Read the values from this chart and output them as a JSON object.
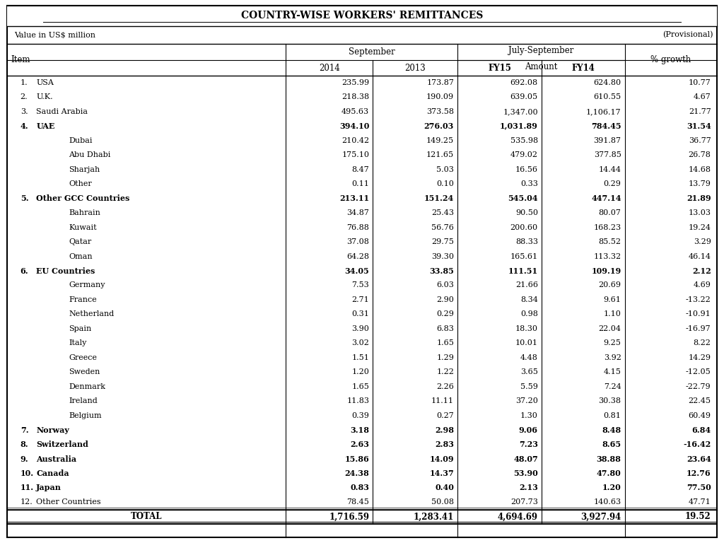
{
  "title": "COUNTRY-WISE WORKERS' REMITTANCES",
  "subtitle_left": "Value in US$ million",
  "subtitle_right": "(Provisional)",
  "col_headers": {
    "september": "September",
    "july_september": "July-September",
    "amount": "Amount",
    "pct_growth": "% growth",
    "sep_2014": "2014",
    "sep_2013": "2013",
    "fy15": "FY15",
    "fy14": "FY14"
  },
  "rows": [
    {
      "num": "1.",
      "name": "USA",
      "indent": 0,
      "bold": false,
      "sep14": "235.99",
      "sep13": "173.87",
      "fy15": "692.08",
      "fy14": "624.80",
      "pct": "10.77"
    },
    {
      "num": "2.",
      "name": "U.K.",
      "indent": 0,
      "bold": false,
      "sep14": "218.38",
      "sep13": "190.09",
      "fy15": "639.05",
      "fy14": "610.55",
      "pct": "4.67"
    },
    {
      "num": "3.",
      "name": "Saudi Arabia",
      "indent": 0,
      "bold": false,
      "sep14": "495.63",
      "sep13": "373.58",
      "fy15": "1,347.00",
      "fy14": "1,106.17",
      "pct": "21.77"
    },
    {
      "num": "4.",
      "name": "UAE",
      "indent": 0,
      "bold": true,
      "sep14": "394.10",
      "sep13": "276.03",
      "fy15": "1,031.89",
      "fy14": "784.45",
      "pct": "31.54"
    },
    {
      "num": "",
      "name": "Dubai",
      "indent": 1,
      "bold": false,
      "sep14": "210.42",
      "sep13": "149.25",
      "fy15": "535.98",
      "fy14": "391.87",
      "pct": "36.77"
    },
    {
      "num": "",
      "name": "Abu Dhabi",
      "indent": 1,
      "bold": false,
      "sep14": "175.10",
      "sep13": "121.65",
      "fy15": "479.02",
      "fy14": "377.85",
      "pct": "26.78"
    },
    {
      "num": "",
      "name": "Sharjah",
      "indent": 1,
      "bold": false,
      "sep14": "8.47",
      "sep13": "5.03",
      "fy15": "16.56",
      "fy14": "14.44",
      "pct": "14.68"
    },
    {
      "num": "",
      "name": "Other",
      "indent": 1,
      "bold": false,
      "sep14": "0.11",
      "sep13": "0.10",
      "fy15": "0.33",
      "fy14": "0.29",
      "pct": "13.79"
    },
    {
      "num": "5.",
      "name": "Other GCC Countries",
      "indent": 0,
      "bold": true,
      "sep14": "213.11",
      "sep13": "151.24",
      "fy15": "545.04",
      "fy14": "447.14",
      "pct": "21.89"
    },
    {
      "num": "",
      "name": "Bahrain",
      "indent": 1,
      "bold": false,
      "sep14": "34.87",
      "sep13": "25.43",
      "fy15": "90.50",
      "fy14": "80.07",
      "pct": "13.03"
    },
    {
      "num": "",
      "name": "Kuwait",
      "indent": 1,
      "bold": false,
      "sep14": "76.88",
      "sep13": "56.76",
      "fy15": "200.60",
      "fy14": "168.23",
      "pct": "19.24"
    },
    {
      "num": "",
      "name": "Qatar",
      "indent": 1,
      "bold": false,
      "sep14": "37.08",
      "sep13": "29.75",
      "fy15": "88.33",
      "fy14": "85.52",
      "pct": "3.29"
    },
    {
      "num": "",
      "name": "Oman",
      "indent": 1,
      "bold": false,
      "sep14": "64.28",
      "sep13": "39.30",
      "fy15": "165.61",
      "fy14": "113.32",
      "pct": "46.14"
    },
    {
      "num": "6.",
      "name": "EU Countries",
      "indent": 0,
      "bold": true,
      "sep14": "34.05",
      "sep13": "33.85",
      "fy15": "111.51",
      "fy14": "109.19",
      "pct": "2.12"
    },
    {
      "num": "",
      "name": "Germany",
      "indent": 1,
      "bold": false,
      "sep14": "7.53",
      "sep13": "6.03",
      "fy15": "21.66",
      "fy14": "20.69",
      "pct": "4.69"
    },
    {
      "num": "",
      "name": "France",
      "indent": 1,
      "bold": false,
      "sep14": "2.71",
      "sep13": "2.90",
      "fy15": "8.34",
      "fy14": "9.61",
      "pct": "-13.22"
    },
    {
      "num": "",
      "name": "Netherland",
      "indent": 1,
      "bold": false,
      "sep14": "0.31",
      "sep13": "0.29",
      "fy15": "0.98",
      "fy14": "1.10",
      "pct": "-10.91"
    },
    {
      "num": "",
      "name": "Spain",
      "indent": 1,
      "bold": false,
      "sep14": "3.90",
      "sep13": "6.83",
      "fy15": "18.30",
      "fy14": "22.04",
      "pct": "-16.97"
    },
    {
      "num": "",
      "name": "Italy",
      "indent": 1,
      "bold": false,
      "sep14": "3.02",
      "sep13": "1.65",
      "fy15": "10.01",
      "fy14": "9.25",
      "pct": "8.22"
    },
    {
      "num": "",
      "name": "Greece",
      "indent": 1,
      "bold": false,
      "sep14": "1.51",
      "sep13": "1.29",
      "fy15": "4.48",
      "fy14": "3.92",
      "pct": "14.29"
    },
    {
      "num": "",
      "name": "Sweden",
      "indent": 1,
      "bold": false,
      "sep14": "1.20",
      "sep13": "1.22",
      "fy15": "3.65",
      "fy14": "4.15",
      "pct": "-12.05"
    },
    {
      "num": "",
      "name": "Denmark",
      "indent": 1,
      "bold": false,
      "sep14": "1.65",
      "sep13": "2.26",
      "fy15": "5.59",
      "fy14": "7.24",
      "pct": "-22.79"
    },
    {
      "num": "",
      "name": "Ireland",
      "indent": 1,
      "bold": false,
      "sep14": "11.83",
      "sep13": "11.11",
      "fy15": "37.20",
      "fy14": "30.38",
      "pct": "22.45"
    },
    {
      "num": "",
      "name": "Belgium",
      "indent": 1,
      "bold": false,
      "sep14": "0.39",
      "sep13": "0.27",
      "fy15": "1.30",
      "fy14": "0.81",
      "pct": "60.49"
    },
    {
      "num": "7.",
      "name": "Norway",
      "indent": 0,
      "bold": true,
      "sep14": "3.18",
      "sep13": "2.98",
      "fy15": "9.06",
      "fy14": "8.48",
      "pct": "6.84"
    },
    {
      "num": "8.",
      "name": "Switzerland",
      "indent": 0,
      "bold": true,
      "sep14": "2.63",
      "sep13": "2.83",
      "fy15": "7.23",
      "fy14": "8.65",
      "pct": "-16.42"
    },
    {
      "num": "9.",
      "name": "Australia",
      "indent": 0,
      "bold": true,
      "sep14": "15.86",
      "sep13": "14.09",
      "fy15": "48.07",
      "fy14": "38.88",
      "pct": "23.64"
    },
    {
      "num": "10.",
      "name": "Canada",
      "indent": 0,
      "bold": true,
      "sep14": "24.38",
      "sep13": "14.37",
      "fy15": "53.90",
      "fy14": "47.80",
      "pct": "12.76"
    },
    {
      "num": "11.",
      "name": "Japan",
      "indent": 0,
      "bold": true,
      "sep14": "0.83",
      "sep13": "0.40",
      "fy15": "2.13",
      "fy14": "1.20",
      "pct": "77.50"
    },
    {
      "num": "12.",
      "name": "Other Countries",
      "indent": 0,
      "bold": false,
      "sep14": "78.45",
      "sep13": "50.08",
      "fy15": "207.73",
      "fy14": "140.63",
      "pct": "47.71"
    }
  ],
  "total_row": {
    "name": "TOTAL",
    "sep14": "1,716.59",
    "sep13": "1,283.41",
    "fy15": "4,694.69",
    "fy14": "3,927.94",
    "pct": "19.52"
  },
  "bg_color": "#ffffff",
  "border_color": "#000000",
  "text_color": "#000000"
}
